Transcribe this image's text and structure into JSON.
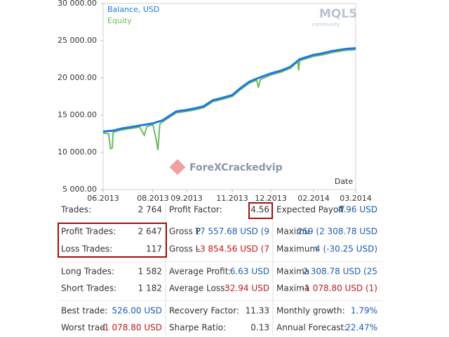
{
  "chart_data": {
    "type": "line",
    "xlabel": "Date",
    "xlim": [
      0,
      2764
    ],
    "xticks": [
      {
        "value": 0,
        "label": "06.2013"
      },
      {
        "value": 545,
        "label": "08.2013"
      },
      {
        "value": 914,
        "label": "09.2013"
      },
      {
        "value": 1413,
        "label": "11.2013"
      },
      {
        "value": 1835,
        "label": "12.2013"
      },
      {
        "value": 2303,
        "label": "02.2014"
      },
      {
        "value": 2764,
        "label": "03.2014"
      }
    ],
    "ylim": [
      5000,
      30000
    ],
    "yticks": [
      {
        "value": 5000,
        "label": "5 000.00"
      },
      {
        "value": 10000,
        "label": "10 000.00"
      },
      {
        "value": 15000,
        "label": "15 000.00"
      },
      {
        "value": 20000,
        "label": "20 000.00"
      },
      {
        "value": 25000,
        "label": "25 000.00"
      },
      {
        "value": 30000,
        "label": "30 000.00"
      }
    ],
    "series": [
      {
        "name": "Balance, USD",
        "color": "#1f78e0",
        "x": [
          0,
          100,
          200,
          400,
          545,
          650,
          800,
          914,
          1000,
          1100,
          1200,
          1300,
          1413,
          1500,
          1600,
          1700,
          1835,
          1950,
          2050,
          2150,
          2303,
          2400,
          2500,
          2650,
          2764
        ],
        "values": [
          12800,
          12900,
          13200,
          13600,
          13900,
          14300,
          15500,
          15700,
          15900,
          16200,
          17000,
          17300,
          17700,
          18600,
          19500,
          20000,
          20600,
          21000,
          21500,
          22500,
          23100,
          23300,
          23600,
          23900,
          24000
        ]
      },
      {
        "name": "Equity",
        "color": "#6dbb5c",
        "x": [
          0,
          60,
          80,
          100,
          110,
          200,
          400,
          450,
          480,
          545,
          580,
          600,
          620,
          650,
          800,
          914,
          1000,
          1100,
          1200,
          1300,
          1413,
          1500,
          1600,
          1680,
          1700,
          1720,
          1835,
          1950,
          2050,
          2130,
          2140,
          2150,
          2303,
          2400,
          2500,
          2650,
          2764
        ],
        "values": [
          12600,
          12500,
          10500,
          10600,
          12700,
          13000,
          13400,
          12300,
          13500,
          13700,
          11800,
          10300,
          13800,
          14100,
          15300,
          15500,
          15700,
          16000,
          16800,
          17100,
          17500,
          18400,
          19300,
          19700,
          18700,
          19800,
          20400,
          20800,
          21300,
          22200,
          21000,
          22300,
          22900,
          23100,
          23400,
          23700,
          23800
        ]
      }
    ]
  },
  "watermarks": {
    "logo": "MQL5",
    "logo_sub": "community",
    "site": "ForeXCrackedvip"
  },
  "stats": {
    "rows": [
      [
        [
          "Trades:",
          "2 764"
        ],
        [
          "Profit Factor:",
          "4.56"
        ],
        [
          "Expected Payoff",
          "4.96 USD"
        ]
      ],
      [
        [
          "Profit Trades:",
          "2 647"
        ],
        [
          "Gross P",
          "17 557.68 USD (9"
        ],
        [
          "Maximu",
          "259 (2 308.78 USD"
        ]
      ],
      [
        [
          "Loss Trades:",
          "117"
        ],
        [
          "Gross L",
          "-3 854.56 USD (7"
        ],
        [
          "Maximum",
          "4 (-30.25 USD)"
        ]
      ],
      [
        [
          "Long Trades:",
          "1 582"
        ],
        [
          "Average Profit:",
          "6.63 USD"
        ],
        [
          "Maxima",
          "2 308.78 USD (25"
        ]
      ],
      [
        [
          "Short Trades:",
          "1 182"
        ],
        [
          "Average Loss:",
          "-32.94 USD"
        ],
        [
          "Maxima",
          "-1 078.80 USD (1)"
        ]
      ],
      [
        [
          "Best trade:",
          "526.00 USD"
        ],
        [
          "Recovery Factor:",
          "11.33"
        ],
        [
          "Monthly growth:",
          "1.79%"
        ]
      ],
      [
        [
          "Worst trad",
          "-1 078.80 USD"
        ],
        [
          "Sharpe Ratio:",
          "0.13"
        ],
        [
          "Annual Forecast:",
          "22.47%"
        ]
      ]
    ]
  }
}
